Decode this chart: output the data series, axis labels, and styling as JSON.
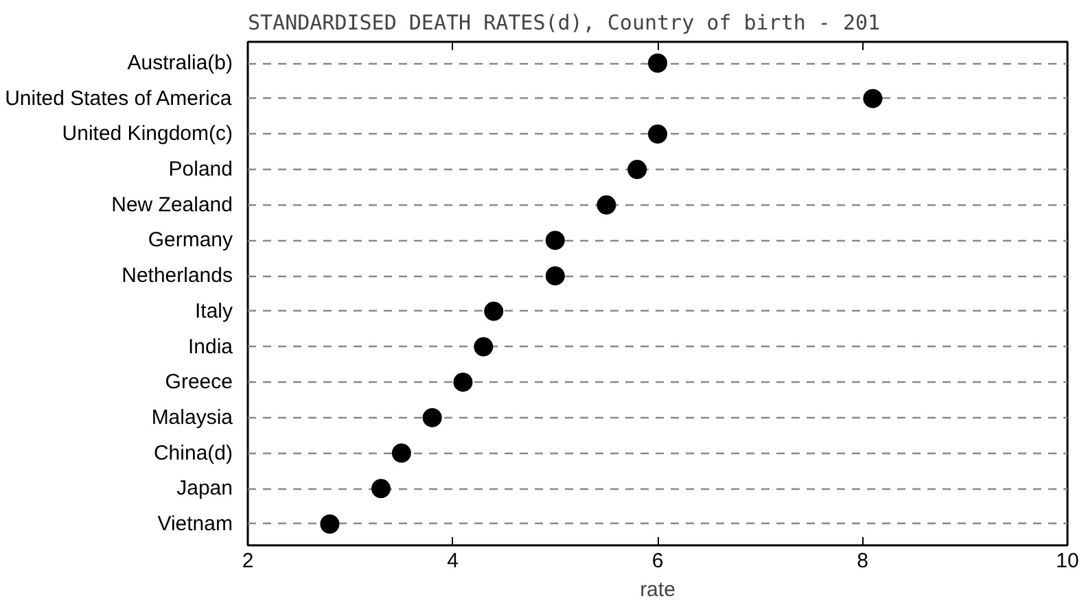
{
  "chart_data": {
    "type": "scatter",
    "title": "STANDARDISED DEATH RATES(d), Country of birth - 201",
    "xlabel": "rate",
    "orientation": "horizontal",
    "categories": [
      "Australia(b)",
      "United States of America",
      "United Kingdom(c)",
      "Poland",
      "New Zealand",
      "Germany",
      "Netherlands",
      "Italy",
      "India",
      "Greece",
      "Malaysia",
      "China(d)",
      "Japan",
      "Vietnam"
    ],
    "values": [
      6.0,
      8.1,
      6.0,
      5.8,
      5.5,
      5.0,
      5.0,
      4.4,
      4.3,
      4.1,
      3.8,
      3.5,
      3.3,
      2.8
    ],
    "color": "#000000",
    "marker": "circle",
    "xlim": [
      2,
      10
    ],
    "xticks": [
      2,
      4,
      6,
      8,
      10
    ],
    "grid": "y"
  }
}
